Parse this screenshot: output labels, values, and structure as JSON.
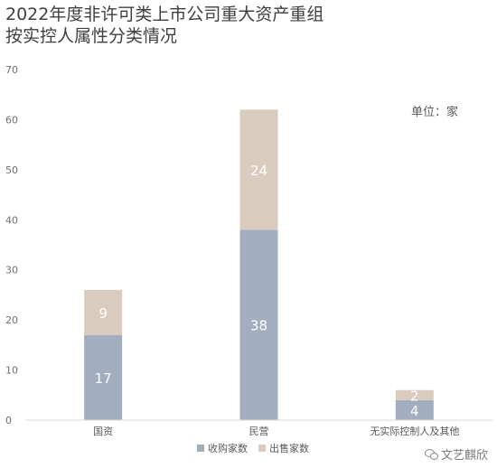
{
  "chart_data": {
    "type": "bar",
    "stacked": true,
    "title": "2022年度非许可类上市公司重大资产重组\n按实控人属性分类情况",
    "unit_note": "单位：家",
    "categories": [
      "国资",
      "民营",
      "无实际控制人及其他"
    ],
    "series": [
      {
        "name": "收购家数",
        "values": [
          17,
          38,
          4
        ],
        "color": "#a2adbf"
      },
      {
        "name": "出售家数",
        "values": [
          9,
          24,
          2
        ],
        "color": "#dacbbf"
      }
    ],
    "ylim": [
      0,
      70
    ],
    "yticks": [
      0,
      10,
      20,
      30,
      40,
      50,
      60,
      70
    ],
    "grid": false,
    "legend_position": "bottom-center"
  },
  "watermark": {
    "icon": "wechat-icon",
    "text": "文艺麒欣"
  }
}
